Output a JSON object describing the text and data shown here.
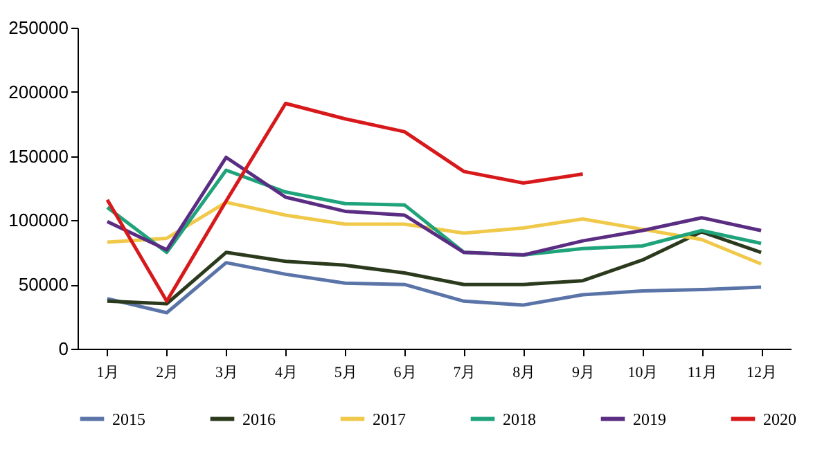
{
  "chart_data": {
    "type": "line",
    "categories": [
      "1月",
      "2月",
      "3月",
      "4月",
      "5月",
      "6月",
      "7月",
      "8月",
      "9月",
      "10月",
      "11月",
      "12月"
    ],
    "series": [
      {
        "name": "2015",
        "color": "#5b74a8",
        "values": [
          39000,
          28000,
          67000,
          58000,
          51000,
          50000,
          37000,
          34000,
          42000,
          45000,
          46000,
          48000
        ]
      },
      {
        "name": "2016",
        "color": "#2b3a1c",
        "values": [
          37000,
          35000,
          75000,
          68000,
          65000,
          59000,
          50000,
          50000,
          53000,
          69000,
          91000,
          75000
        ]
      },
      {
        "name": "2017",
        "color": "#f0c94a",
        "values": [
          83000,
          86000,
          114000,
          104000,
          97000,
          97000,
          90000,
          94000,
          101000,
          93000,
          85000,
          66000
        ]
      },
      {
        "name": "2018",
        "color": "#1fa37a",
        "values": [
          110000,
          75000,
          139000,
          122000,
          113000,
          112000,
          75000,
          73000,
          78000,
          80000,
          92000,
          82000
        ]
      },
      {
        "name": "2019",
        "color": "#5a2d82",
        "values": [
          99000,
          77000,
          149000,
          118000,
          107000,
          104000,
          75000,
          73000,
          84000,
          92000,
          102000,
          92000
        ]
      },
      {
        "name": "2020",
        "color": "#d7191c",
        "values": [
          116000,
          37000,
          115000,
          191000,
          179000,
          169000,
          138000,
          129000,
          136000,
          null,
          null,
          null
        ]
      }
    ],
    "ylim": [
      0,
      250000
    ],
    "yticks": [
      0,
      50000,
      100000,
      150000,
      200000,
      250000
    ],
    "grid": false,
    "legend": "bottom",
    "marker": "none",
    "line_style": "solid"
  }
}
